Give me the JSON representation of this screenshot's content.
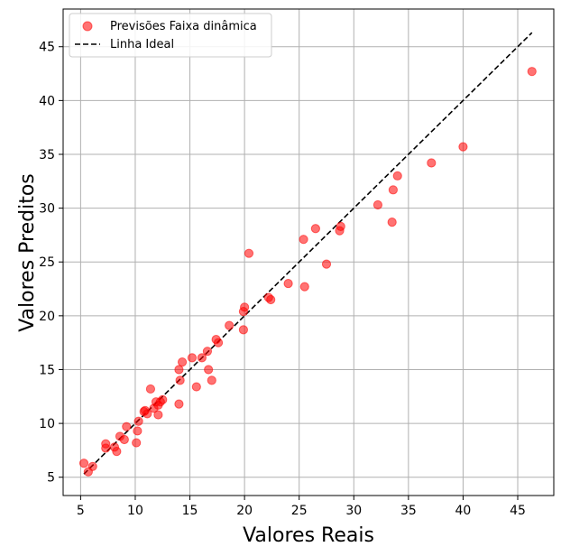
{
  "chart_data": {
    "type": "scatter",
    "title": "",
    "xlabel": "Valores Reais",
    "ylabel": "Valores Preditos",
    "xlim": [
      3.4,
      48.3
    ],
    "ylim": [
      3.3,
      48.5
    ],
    "xticks": [
      5,
      10,
      15,
      20,
      25,
      30,
      35,
      40,
      45
    ],
    "yticks": [
      5,
      10,
      15,
      20,
      25,
      30,
      35,
      40,
      45
    ],
    "grid": true,
    "legend_position": "top-left",
    "series": [
      {
        "name": "Previsões Faixa dinâmica",
        "kind": "scatter",
        "color": "#ff0000",
        "opacity": 0.55,
        "points": [
          [
            5.3,
            6.3
          ],
          [
            5.7,
            5.5
          ],
          [
            6.1,
            6.0
          ],
          [
            7.3,
            7.7
          ],
          [
            7.3,
            8.1
          ],
          [
            8.1,
            7.8
          ],
          [
            8.3,
            7.4
          ],
          [
            8.6,
            8.8
          ],
          [
            9.0,
            8.5
          ],
          [
            9.2,
            9.7
          ],
          [
            10.1,
            8.2
          ],
          [
            10.2,
            9.3
          ],
          [
            10.3,
            10.2
          ],
          [
            10.8,
            11.1
          ],
          [
            10.9,
            11.2
          ],
          [
            11.1,
            10.9
          ],
          [
            11.4,
            13.2
          ],
          [
            11.7,
            11.4
          ],
          [
            11.9,
            12.0
          ],
          [
            12.1,
            11.7
          ],
          [
            12.1,
            10.8
          ],
          [
            12.3,
            12.0
          ],
          [
            12.5,
            12.2
          ],
          [
            14.0,
            11.8
          ],
          [
            14.0,
            15.0
          ],
          [
            14.1,
            14.0
          ],
          [
            14.3,
            15.7
          ],
          [
            15.2,
            16.1
          ],
          [
            15.6,
            13.4
          ],
          [
            16.1,
            16.1
          ],
          [
            16.6,
            16.7
          ],
          [
            16.7,
            15.0
          ],
          [
            17.0,
            14.0
          ],
          [
            17.4,
            17.8
          ],
          [
            17.6,
            17.5
          ],
          [
            18.6,
            19.1
          ],
          [
            19.9,
            18.7
          ],
          [
            19.9,
            20.4
          ],
          [
            20.0,
            20.8
          ],
          [
            20.4,
            25.8
          ],
          [
            22.2,
            21.7
          ],
          [
            22.4,
            21.5
          ],
          [
            24.0,
            23.0
          ],
          [
            25.4,
            27.1
          ],
          [
            25.5,
            22.7
          ],
          [
            26.5,
            28.1
          ],
          [
            27.5,
            24.8
          ],
          [
            28.7,
            27.9
          ],
          [
            28.8,
            28.3
          ],
          [
            32.2,
            30.3
          ],
          [
            33.5,
            28.7
          ],
          [
            33.6,
            31.7
          ],
          [
            34.0,
            33.0
          ],
          [
            37.1,
            34.2
          ],
          [
            40.0,
            35.7
          ],
          [
            46.3,
            42.7
          ]
        ]
      },
      {
        "name": "Linha Ideal",
        "kind": "line",
        "style": "dashed",
        "color": "#000000",
        "points": [
          [
            5.3,
            5.3
          ],
          [
            46.3,
            46.3
          ]
        ]
      }
    ]
  }
}
